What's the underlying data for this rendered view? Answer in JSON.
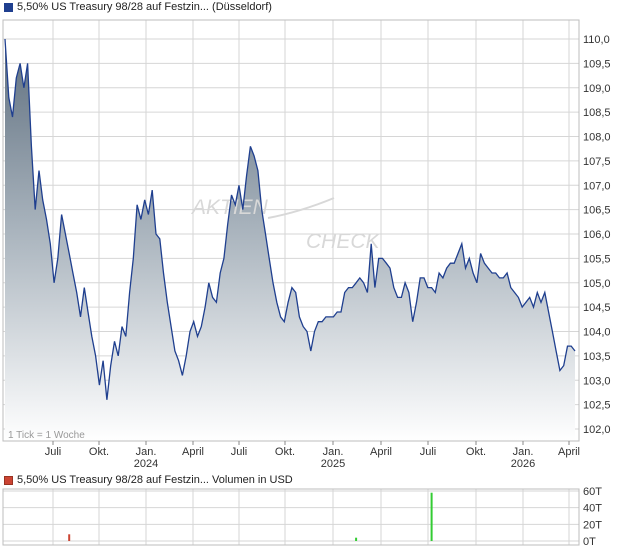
{
  "colors": {
    "price_line": "#1f3f8f",
    "volume_bar": "#33cc33",
    "volume_swatch": "#cc4433",
    "grid": "#d6d6d6",
    "frame": "#bdbdbd"
  },
  "price_panel": {
    "legend": "5,50% US Treasury 98/28 auf Festzin... (Düsseldorf)",
    "tick_note": "1 Tick = 1 Woche",
    "watermark_a": "AKTIEN",
    "watermark_b": "CHECK"
  },
  "volume_panel": {
    "legend": "5,50% US Treasury 98/28 auf Festzin... Volumen in USD"
  },
  "chart_data": [
    {
      "type": "area",
      "ylim": [
        101.8,
        110.3
      ],
      "y_ticks": [
        "110,0",
        "109,5",
        "109,0",
        "108,5",
        "108,0",
        "107,5",
        "107,0",
        "106,5",
        "106,0",
        "105,5",
        "105,0",
        "104,5",
        "104,0",
        "103,5",
        "103,0",
        "102,5",
        "102,0"
      ],
      "x_ticks": [
        {
          "label": "Juli",
          "year": ""
        },
        {
          "label": "Okt.",
          "year": ""
        },
        {
          "label": "Jan.",
          "year": "2024"
        },
        {
          "label": "April",
          "year": ""
        },
        {
          "label": "Juli",
          "year": ""
        },
        {
          "label": "Okt.",
          "year": ""
        },
        {
          "label": "Jan.",
          "year": "2025"
        },
        {
          "label": "April",
          "year": ""
        },
        {
          "label": "Juli",
          "year": ""
        },
        {
          "label": "Okt.",
          "year": ""
        },
        {
          "label": "Jan.",
          "year": "2026"
        },
        {
          "label": "April",
          "year": ""
        }
      ],
      "values": [
        110.0,
        108.8,
        108.4,
        109.2,
        109.5,
        109.0,
        109.5,
        107.8,
        106.5,
        107.3,
        106.7,
        106.3,
        105.8,
        105.0,
        105.5,
        106.4,
        106.0,
        105.6,
        105.2,
        104.8,
        104.3,
        104.9,
        104.4,
        103.9,
        103.5,
        102.9,
        103.4,
        102.6,
        103.3,
        103.8,
        103.5,
        104.1,
        103.9,
        104.8,
        105.5,
        106.6,
        106.3,
        106.7,
        106.4,
        106.9,
        106.0,
        105.9,
        105.2,
        104.6,
        104.1,
        103.6,
        103.4,
        103.1,
        103.5,
        104.0,
        104.2,
        103.9,
        104.1,
        104.5,
        105.0,
        104.7,
        104.6,
        105.2,
        105.5,
        106.2,
        106.8,
        106.6,
        107.0,
        106.5,
        107.2,
        107.8,
        107.6,
        107.3,
        106.5,
        106.0,
        105.5,
        105.0,
        104.6,
        104.3,
        104.2,
        104.6,
        104.9,
        104.8,
        104.3,
        104.1,
        104.0,
        103.6,
        104.0,
        104.2,
        104.2,
        104.3,
        104.3,
        104.3,
        104.4,
        104.4,
        104.8,
        104.9,
        104.9,
        105.0,
        105.1,
        105.0,
        104.8,
        105.8,
        104.9,
        105.5,
        105.5,
        105.4,
        105.3,
        104.9,
        104.7,
        104.7,
        105.0,
        104.8,
        104.2,
        104.6,
        105.1,
        105.1,
        104.9,
        104.9,
        104.8,
        105.2,
        105.1,
        105.3,
        105.4,
        105.4,
        105.6,
        105.8,
        105.3,
        105.5,
        105.2,
        105.0,
        105.6,
        105.4,
        105.3,
        105.2,
        105.2,
        105.1,
        105.1,
        105.2,
        104.9,
        104.8,
        104.7,
        104.5,
        104.6,
        104.7,
        104.5,
        104.8,
        104.6,
        104.8,
        104.4,
        104.0,
        103.6,
        103.2,
        103.3,
        103.7,
        103.7,
        103.6
      ]
    },
    {
      "type": "bar",
      "ylim": [
        0,
        60
      ],
      "y_ticks": [
        "60T",
        "40T",
        "20T",
        "0T"
      ],
      "bars": [
        {
          "week": 17,
          "value": 8,
          "color": "#cc4433"
        },
        {
          "week": 93,
          "value": 4,
          "color": "#33cc33"
        },
        {
          "week": 113,
          "value": 58,
          "color": "#33cc33"
        }
      ]
    }
  ]
}
